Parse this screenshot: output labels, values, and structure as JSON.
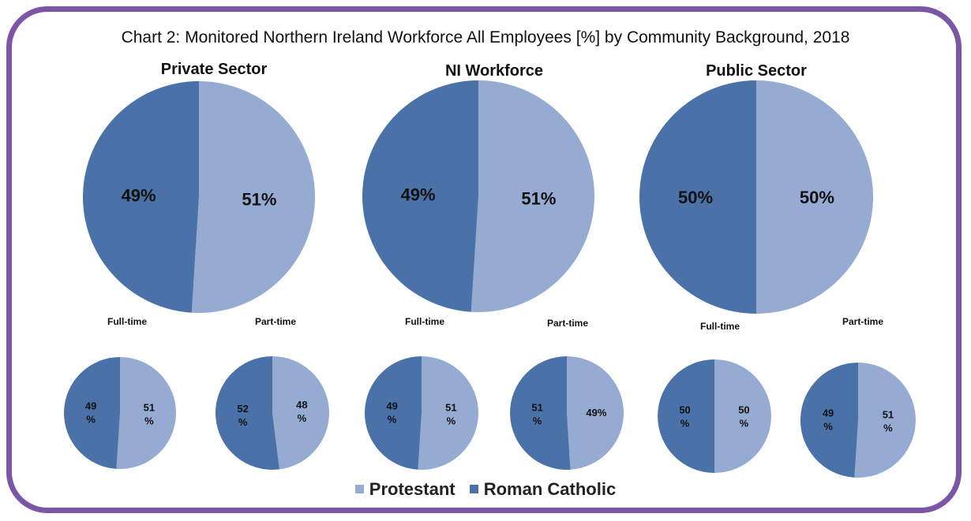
{
  "chart_data": {
    "type": "pie",
    "title": "Chart 2: Monitored Northern Ireland Workforce All Employees [%] by Community Background,  2018",
    "legend": [
      {
        "name": "Protestant",
        "color": "#96abd2"
      },
      {
        "name": "Roman Catholic",
        "color": "#4a72a8"
      }
    ],
    "legend_position": "bottom-center",
    "panels": [
      {
        "title": "Private Sector",
        "main": {
          "protestant": 51,
          "catholic": 49,
          "protestant_label": "51%",
          "catholic_label": "49%"
        },
        "sub": [
          {
            "title": "Full-time",
            "protestant": 51,
            "catholic": 49,
            "protestant_label": "51\n%",
            "catholic_label": "49\n%"
          },
          {
            "title": "Part-time",
            "protestant": 48,
            "catholic": 52,
            "protestant_label": "48\n%",
            "catholic_label": "52\n%"
          }
        ]
      },
      {
        "title": "NI Workforce",
        "main": {
          "protestant": 51,
          "catholic": 49,
          "protestant_label": "51%",
          "catholic_label": "49%"
        },
        "sub": [
          {
            "title": "Full-time",
            "protestant": 51,
            "catholic": 49,
            "protestant_label": "51\n%",
            "catholic_label": "49\n%"
          },
          {
            "title": "Part-time",
            "protestant": 49,
            "catholic": 51,
            "protestant_label": "49%",
            "catholic_label": "51\n%"
          }
        ]
      },
      {
        "title": "Public Sector",
        "main": {
          "protestant": 50,
          "catholic": 50,
          "protestant_label": "50%",
          "catholic_label": "50%"
        },
        "sub": [
          {
            "title": "Full-time",
            "protestant": 50,
            "catholic": 50,
            "protestant_label": "50\n%",
            "catholic_label": "50\n%"
          },
          {
            "title": "Part-time",
            "protestant": 51,
            "catholic": 49,
            "protestant_label": "51\n%",
            "catholic_label": "49\n%"
          }
        ]
      }
    ]
  }
}
